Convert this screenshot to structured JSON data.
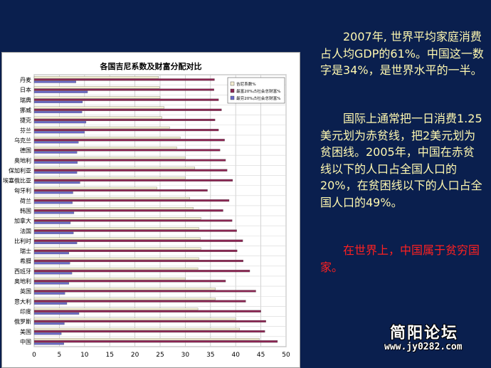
{
  "text": {
    "para1": "2007年, 世界平均家庭消费占人均GDP的61%。中国这一数字是34%，是世界水平的一半。",
    "para2": "国际上通常把一日消费1.25美元划为赤贫线，把2美元划为贫困线。2005年，中国在赤贫线以下的人口占全国人口的20%，在贫困线以下的人口占全国人口的49%。",
    "para3": "在世界上，中国属于贫穷国家。"
  },
  "watermark": {
    "title": "简阳论坛",
    "url": "www.jy0282.com"
  },
  "colors": {
    "background": "#0a1f4e",
    "text": "#fff8b0",
    "highlight": "#ff2020",
    "gini": "#f4eed0",
    "richest": "#8a2552",
    "poorest": "#6a6ac8"
  },
  "chart_data": {
    "type": "bar",
    "orientation": "horizontal",
    "title": "各国吉尼系数及财富分配对比",
    "xlim": [
      0,
      50
    ],
    "xticks": [
      "0",
      "5",
      "10",
      "15",
      "20",
      "25",
      "30",
      "35",
      "40",
      "45",
      "50"
    ],
    "grid": true,
    "legend_position": "top-right",
    "categories": [
      "丹麦",
      "日本",
      "瑞典",
      "挪威",
      "捷克",
      "芬兰",
      "乌克兰",
      "德国",
      "奥地利",
      "保加利亚",
      "埃塞俄比亚",
      "匈牙利",
      "荷兰",
      "韩国",
      "加拿大",
      "法国",
      "比利时",
      "瑞士",
      "希腊",
      "西班牙",
      "奥地利",
      "英国",
      "意大利",
      "印度",
      "俄罗斯",
      "美国",
      "中国"
    ],
    "series": [
      {
        "name": "吉尼系数%",
        "color": "#f4eed0",
        "values": [
          24.7,
          24.9,
          25.0,
          25.8,
          25.4,
          26.9,
          29.0,
          28.3,
          30.0,
          31.9,
          30.0,
          24.4,
          30.9,
          31.6,
          33.1,
          32.7,
          33.0,
          33.1,
          32.7,
          32.5,
          30.0,
          36.0,
          36.0,
          32.5,
          40.0,
          40.8,
          44.7
        ]
      },
      {
        "name": "最富20%占社会总财富%",
        "color": "#8a2552",
        "values": [
          35.8,
          35.7,
          36.6,
          37.2,
          35.9,
          36.6,
          37.8,
          36.9,
          38.0,
          38.3,
          39.4,
          34.4,
          38.7,
          37.5,
          39.3,
          40.2,
          41.4,
          40.3,
          41.5,
          42.8,
          38.0,
          44.0,
          42.0,
          45.0,
          46.0,
          45.8,
          48.3
        ]
      },
      {
        "name": "最穷20%占社会总财富%",
        "color": "#6a6ac8",
        "values": [
          8.3,
          10.6,
          9.6,
          9.5,
          10.3,
          10.0,
          8.8,
          8.5,
          8.6,
          8.5,
          9.1,
          7.7,
          7.6,
          7.9,
          7.2,
          7.8,
          8.5,
          6.9,
          7.1,
          7.5,
          6.9,
          6.1,
          6.5,
          8.9,
          6.0,
          5.4,
          5.9
        ]
      }
    ]
  }
}
